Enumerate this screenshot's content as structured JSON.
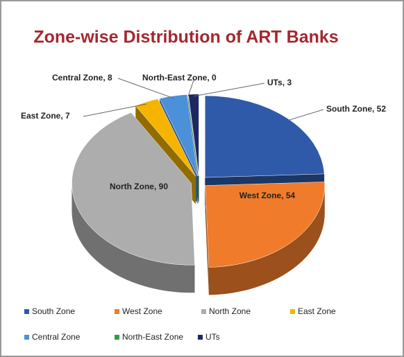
{
  "chart_data": {
    "type": "pie",
    "title": "Zone-wise Distribution of ART Banks",
    "categories": [
      "South Zone",
      "West Zone",
      "North Zone",
      "East Zone",
      "Central Zone",
      "North-East Zone",
      "UTs"
    ],
    "values": [
      52,
      54,
      90,
      7,
      8,
      0,
      3
    ],
    "value_labels": [
      "South Zone, 52",
      "West Zone, 54",
      "North Zone, 90",
      "East Zone, 7",
      "Central Zone, 8",
      "North-East Zone, 0",
      "UTs, 3"
    ],
    "colors": [
      "#2f5aa9",
      "#f07b2b",
      "#adadad",
      "#f5b400",
      "#4b90d8",
      "#2f9e4b",
      "#1d2862"
    ],
    "legend": "bottom"
  }
}
